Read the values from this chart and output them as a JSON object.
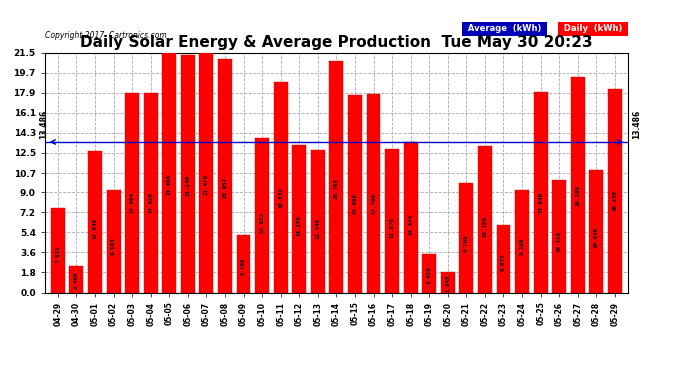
{
  "title": "Daily Solar Energy & Average Production  Tue May 30 20:23",
  "copyright": "Copyright 2017  Cartronics.com",
  "categories": [
    "04-29",
    "04-30",
    "05-01",
    "05-02",
    "05-03",
    "05-04",
    "05-05",
    "05-06",
    "05-07",
    "05-08",
    "05-09",
    "05-10",
    "05-11",
    "05-12",
    "05-13",
    "05-14",
    "05-15",
    "05-16",
    "05-17",
    "05-18",
    "05-19",
    "05-20",
    "05-21",
    "05-22",
    "05-23",
    "05-24",
    "05-25",
    "05-26",
    "05-27",
    "05-28",
    "05-29"
  ],
  "values": [
    7.612,
    2.406,
    12.646,
    9.184,
    17.904,
    17.828,
    21.488,
    21.24,
    21.476,
    20.952,
    5.16,
    13.852,
    18.832,
    13.256,
    12.748,
    20.708,
    17.66,
    17.76,
    12.878,
    13.474,
    3.42,
    1.848,
    9.798,
    13.158,
    6.072,
    9.16,
    17.948,
    10.116,
    19.296,
    10.94,
    18.23
  ],
  "average": 13.486,
  "bar_color": "#ff0000",
  "average_line_color": "#0000cc",
  "yticks": [
    0.0,
    1.8,
    3.6,
    5.4,
    7.2,
    9.0,
    10.7,
    12.5,
    14.3,
    16.1,
    17.9,
    19.7,
    21.5
  ],
  "ylim": [
    0.0,
    21.5
  ],
  "grid_color": "#aaaaaa",
  "background_color": "#ffffff",
  "title_fontsize": 11,
  "bar_edge_color": "#cc0000",
  "legend_avg_color": "#0000bb",
  "legend_daily_color": "#ff0000"
}
